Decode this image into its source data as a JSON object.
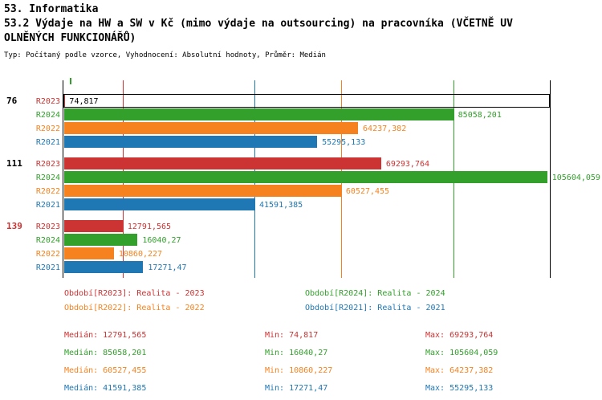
{
  "header": {
    "title_line1": "53. Informatika",
    "title_line2": "53.2 Výdaje na HW a SW v Kč (mimo výdaje na outsourcing) na pracovníka (VČETNĚ UV",
    "title_line3": "OLNĚNÝCH FUNKCIONÁŘŮ)",
    "meta": "Typ: Počítaný podle vzorce, Vyhodnocení: Absolutní hodnoty, Průměr: Medián"
  },
  "colors": {
    "r2023": "#cc3333",
    "r2024": "#33a02c",
    "r2022": "#f5821f",
    "r2021": "#1f77b4",
    "axis": "#000000",
    "selected_value_text": "#000000",
    "group_label_default": "#000000",
    "group_label_highlight": "#cc3333"
  },
  "chart_data": {
    "type": "bar",
    "orientation": "horizontal",
    "x_max": 106000,
    "grid": "median-lines-only",
    "series_order": [
      "R2023",
      "R2024",
      "R2022",
      "R2021"
    ],
    "groups": [
      {
        "label": "76",
        "label_color": "#000000",
        "bars": [
          {
            "series": "R2023",
            "value": 74.817,
            "display": "74,817",
            "color_key": "r2023",
            "value_color": "#000000",
            "selected": true
          },
          {
            "series": "R2024",
            "value": 85058.201,
            "display": "85058,201",
            "color_key": "r2024"
          },
          {
            "series": "R2022",
            "value": 64237.382,
            "display": "64237,382",
            "color_key": "r2022"
          },
          {
            "series": "R2021",
            "value": 55295.133,
            "display": "55295,133",
            "color_key": "r2021"
          }
        ]
      },
      {
        "label": "111",
        "label_color": "#000000",
        "bars": [
          {
            "series": "R2023",
            "value": 69293.764,
            "display": "69293,764",
            "color_key": "r2023"
          },
          {
            "series": "R2024",
            "value": 105604.059,
            "display": "105604,059",
            "color_key": "r2024"
          },
          {
            "series": "R2022",
            "value": 60527.455,
            "display": "60527,455",
            "color_key": "r2022"
          },
          {
            "series": "R2021",
            "value": 41591.385,
            "display": "41591,385",
            "color_key": "r2021"
          }
        ]
      },
      {
        "label": "139",
        "label_color": "#cc3333",
        "bars": [
          {
            "series": "R2023",
            "value": 12791.565,
            "display": "12791,565",
            "color_key": "r2023"
          },
          {
            "series": "R2024",
            "value": 16040.27,
            "display": "16040,27",
            "color_key": "r2024"
          },
          {
            "series": "R2022",
            "value": 10860.227,
            "display": "10860,227",
            "color_key": "r2022"
          },
          {
            "series": "R2021",
            "value": 17271.47,
            "display": "17271,47",
            "color_key": "r2021"
          }
        ]
      }
    ],
    "median_lines": [
      {
        "series": "R2023",
        "value": 12791.565,
        "color_key": "r2023"
      },
      {
        "series": "R2024",
        "value": 85058.201,
        "color_key": "r2024"
      },
      {
        "series": "R2022",
        "value": 60527.455,
        "color_key": "r2022"
      },
      {
        "series": "R2021",
        "value": 41591.385,
        "color_key": "r2021"
      }
    ]
  },
  "legend": [
    {
      "text": "Období[R2023]: Realita - 2023",
      "color_key": "r2023",
      "col": 0,
      "row": 0
    },
    {
      "text": "Období[R2024]: Realita - 2024",
      "color_key": "r2024",
      "col": 1,
      "row": 0
    },
    {
      "text": "Období[R2022]: Realita - 2022",
      "color_key": "r2022",
      "col": 0,
      "row": 1
    },
    {
      "text": "Období[R2021]: Realita - 2021",
      "color_key": "r2021",
      "col": 1,
      "row": 1
    }
  ],
  "stats": {
    "labels": {
      "median": "Medián",
      "min": "Min",
      "max": "Max"
    },
    "rows": [
      {
        "color_key": "r2023",
        "median": "12791,565",
        "min": "74,817",
        "max": "69293,764"
      },
      {
        "color_key": "r2024",
        "median": "85058,201",
        "min": "16040,27",
        "max": "105604,059"
      },
      {
        "color_key": "r2022",
        "median": "60527,455",
        "min": "10860,227",
        "max": "64237,382"
      },
      {
        "color_key": "r2021",
        "median": "41591,385",
        "min": "17271,47",
        "max": "55295,133"
      }
    ]
  }
}
